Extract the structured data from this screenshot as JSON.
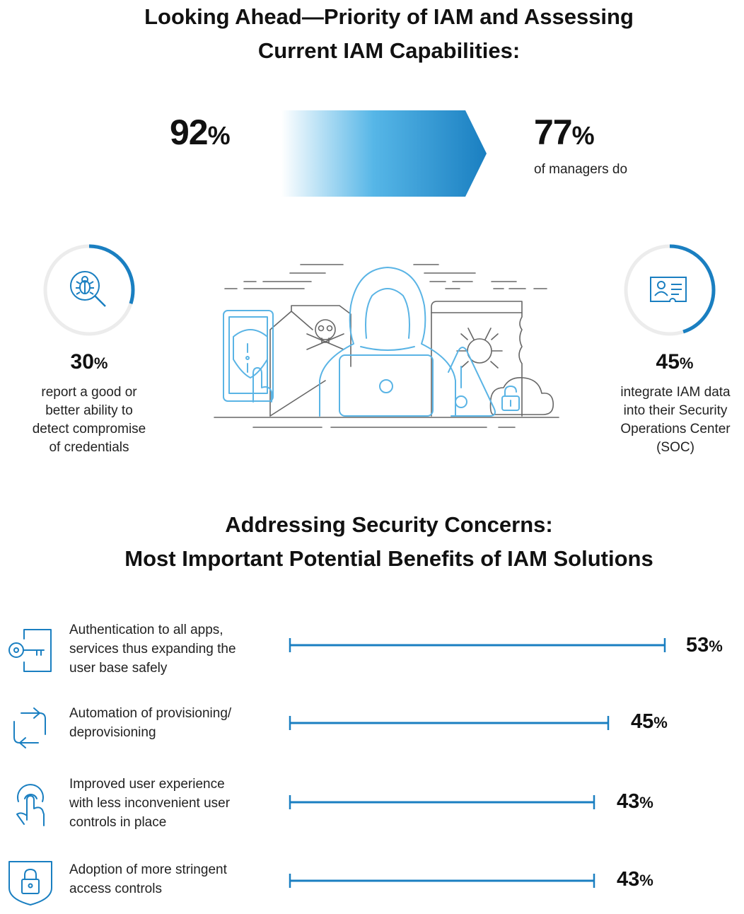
{
  "header": {
    "title_line1": "Looking Ahead—Priority of IAM and Assessing",
    "title_line2": "Current IAM Capabilities:"
  },
  "top_stats": {
    "left": {
      "value": "92",
      "unit": "%"
    },
    "right": {
      "value": "77",
      "unit": "%",
      "caption": "of managers do"
    }
  },
  "ring_stats": [
    {
      "value": "30",
      "unit": "%",
      "fraction": 0.3,
      "icon": "bug-search-icon",
      "lines": [
        "report a good or",
        "better ability to",
        "detect compromise",
        "of credentials"
      ]
    },
    {
      "value": "45",
      "unit": "%",
      "fraction": 0.45,
      "icon": "id-card-icon",
      "lines": [
        "integrate IAM data",
        "into their Security",
        "Operations Center",
        "(SOC)"
      ]
    }
  ],
  "section2": {
    "title_line1": "Addressing Security Concerns:",
    "title_line2": "Most Important Potential Benefits of IAM Solutions"
  },
  "chart_data": {
    "type": "bar",
    "title": "Addressing Security Concerns: Most Important Potential Benefits of IAM Solutions",
    "orientation": "horizontal",
    "unit": "%",
    "categories": [
      "Authentication to all apps, services thus expanding the user base safely",
      "Automation of provisioning/ deprovisioning",
      "Improved user experience with less inconvenient user controls in place",
      "Adoption of more stringent access controls"
    ],
    "values": [
      53,
      45,
      43,
      43
    ],
    "xlim": [
      0,
      53
    ]
  },
  "bars": [
    {
      "icon": "key-door-icon",
      "lines": [
        "Authentication to all apps,",
        "services thus expanding the",
        "user base safely"
      ],
      "value": "53",
      "unit": "%"
    },
    {
      "icon": "refresh-icon",
      "lines": [
        "Automation of provisioning/",
        "deprovisioning"
      ],
      "value": "45",
      "unit": "%"
    },
    {
      "icon": "touch-icon",
      "lines": [
        "Improved user experience",
        "with less inconvenient user",
        "controls in place"
      ],
      "value": "43",
      "unit": "%"
    },
    {
      "icon": "shield-lock-icon",
      "lines": [
        "Adoption of more stringent",
        "access controls"
      ],
      "value": "43",
      "unit": "%"
    }
  ],
  "colors": {
    "accent": "#1a7fc1",
    "accent_light": "#5bbce9",
    "ring_track": "#ececec",
    "illustration_line": "#666666",
    "illustration_accent": "#5ab4e5"
  }
}
